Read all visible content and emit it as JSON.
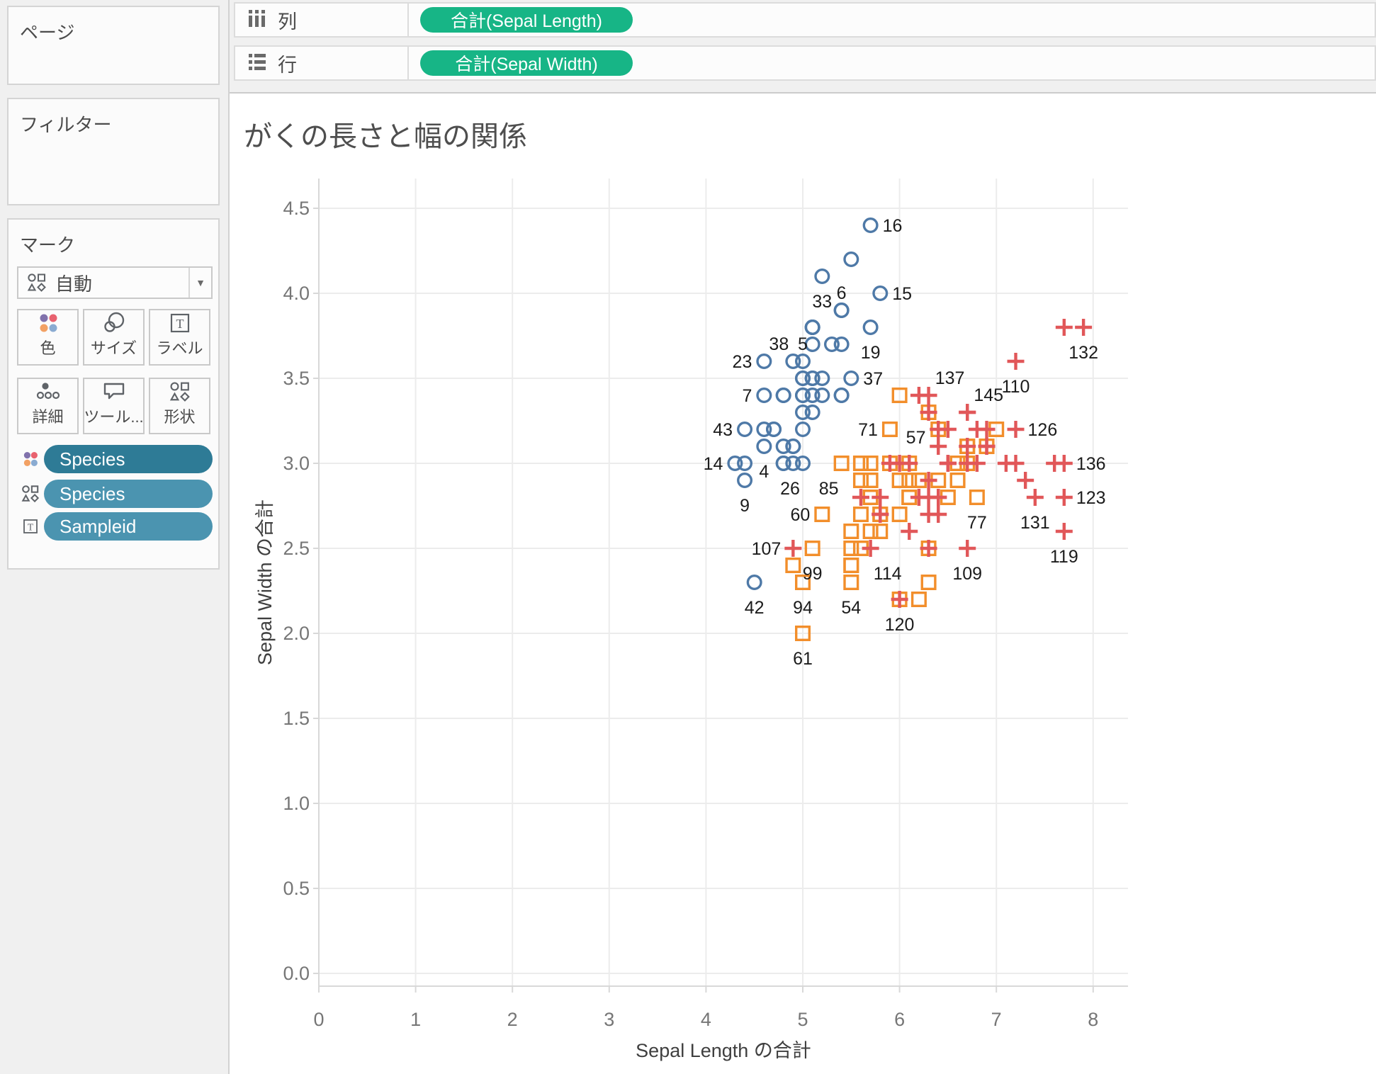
{
  "sidebar": {
    "pages_title": "ページ",
    "filters_title": "フィルター",
    "marks_title": "マーク",
    "mark_type_selector": "自動",
    "mark_buttons": [
      {
        "label": "色",
        "icon": "color-icon"
      },
      {
        "label": "サイズ",
        "icon": "size-icon"
      },
      {
        "label": "ラベル",
        "icon": "label-icon"
      },
      {
        "label": "詳細",
        "icon": "detail-icon"
      },
      {
        "label": "ツール...",
        "icon": "tooltip-icon"
      },
      {
        "label": "形状",
        "icon": "shape-icon"
      }
    ],
    "mark_pills": [
      {
        "label": "Species",
        "icon": "color-icon",
        "color": "#2e7b96"
      },
      {
        "label": "Species",
        "icon": "shape-icon",
        "color": "#4b94b0"
      },
      {
        "label": "Sampleid",
        "icon": "text-icon",
        "color": "#4b94b0"
      }
    ]
  },
  "shelf": {
    "columns": {
      "label": "列",
      "pill": "合計(Sepal Length)"
    },
    "rows": {
      "label": "行",
      "pill": "合計(Sepal Width)"
    },
    "pill_color": "#17b586"
  },
  "chart_data": {
    "type": "scatter",
    "title": "がくの長さと幅の関係",
    "xlabel": "Sepal Length の合計",
    "ylabel": "Sepal Width の合計",
    "xlim": [
      0,
      8.36
    ],
    "ylim": [
      0,
      4.67
    ],
    "x_ticks": [
      0,
      1,
      2,
      3,
      4,
      5,
      6,
      7,
      8
    ],
    "y_ticks": [
      0.0,
      0.5,
      1.0,
      1.5,
      2.0,
      2.5,
      3.0,
      3.5,
      4.0,
      4.5
    ],
    "grid": true,
    "grid_color": "#ececec",
    "axis_color": "#d8d8d8",
    "tick_label_color": "#767676",
    "axis_title_color": "#3f3f3f",
    "mark_label_color": "#1c1c1c",
    "series": [
      {
        "name": "circle-marks",
        "shape": "circle",
        "color": "#4E79A7",
        "points": [
          [
            1,
            5.1,
            3.5
          ],
          [
            2,
            4.9,
            3.0
          ],
          [
            3,
            4.7,
            3.2
          ],
          [
            4,
            4.6,
            3.1
          ],
          [
            5,
            5.0,
            3.6
          ],
          [
            6,
            5.4,
            3.9
          ],
          [
            7,
            4.6,
            3.4
          ],
          [
            8,
            5.0,
            3.4
          ],
          [
            9,
            4.4,
            2.9
          ],
          [
            10,
            4.9,
            3.1
          ],
          [
            11,
            5.4,
            3.7
          ],
          [
            12,
            4.8,
            3.4
          ],
          [
            13,
            4.8,
            3.0
          ],
          [
            14,
            4.3,
            3.0
          ],
          [
            15,
            5.8,
            4.0
          ],
          [
            16,
            5.7,
            4.4
          ],
          [
            17,
            5.4,
            3.9
          ],
          [
            18,
            5.1,
            3.5
          ],
          [
            19,
            5.7,
            3.8
          ],
          [
            20,
            5.1,
            3.8
          ],
          [
            21,
            5.4,
            3.4
          ],
          [
            22,
            5.1,
            3.7
          ],
          [
            23,
            4.6,
            3.6
          ],
          [
            24,
            5.1,
            3.3
          ],
          [
            25,
            4.8,
            3.4
          ],
          [
            26,
            5.0,
            3.0
          ],
          [
            27,
            5.0,
            3.4
          ],
          [
            28,
            5.2,
            3.5
          ],
          [
            29,
            5.2,
            3.4
          ],
          [
            30,
            4.7,
            3.2
          ],
          [
            31,
            4.8,
            3.1
          ],
          [
            32,
            5.4,
            3.4
          ],
          [
            33,
            5.2,
            4.1
          ],
          [
            34,
            5.5,
            4.2
          ],
          [
            35,
            4.9,
            3.1
          ],
          [
            36,
            5.0,
            3.2
          ],
          [
            37,
            5.5,
            3.5
          ],
          [
            38,
            4.9,
            3.6
          ],
          [
            39,
            4.4,
            3.0
          ],
          [
            40,
            5.1,
            3.4
          ],
          [
            41,
            5.0,
            3.5
          ],
          [
            42,
            4.5,
            2.3
          ],
          [
            43,
            4.4,
            3.2
          ],
          [
            44,
            5.0,
            3.5
          ],
          [
            45,
            5.1,
            3.8
          ],
          [
            46,
            4.8,
            3.0
          ],
          [
            47,
            5.1,
            3.8
          ],
          [
            48,
            4.6,
            3.2
          ],
          [
            49,
            5.3,
            3.7
          ],
          [
            50,
            5.0,
            3.3
          ]
        ]
      },
      {
        "name": "square-marks",
        "shape": "square",
        "color": "#F28E2B",
        "points": [
          [
            51,
            7.0,
            3.2
          ],
          [
            52,
            6.4,
            3.2
          ],
          [
            53,
            6.9,
            3.1
          ],
          [
            54,
            5.5,
            2.3
          ],
          [
            55,
            6.5,
            2.8
          ],
          [
            56,
            5.7,
            2.8
          ],
          [
            57,
            6.3,
            3.3
          ],
          [
            58,
            4.9,
            2.4
          ],
          [
            59,
            6.6,
            2.9
          ],
          [
            60,
            5.2,
            2.7
          ],
          [
            61,
            5.0,
            2.0
          ],
          [
            62,
            5.9,
            3.0
          ],
          [
            63,
            6.0,
            2.2
          ],
          [
            64,
            6.1,
            2.9
          ],
          [
            65,
            5.6,
            2.9
          ],
          [
            66,
            6.7,
            3.1
          ],
          [
            67,
            5.6,
            3.0
          ],
          [
            68,
            5.8,
            2.7
          ],
          [
            69,
            6.2,
            2.2
          ],
          [
            70,
            5.6,
            2.5
          ],
          [
            71,
            5.9,
            3.2
          ],
          [
            72,
            6.1,
            2.8
          ],
          [
            73,
            6.3,
            2.5
          ],
          [
            74,
            6.1,
            2.8
          ],
          [
            75,
            6.4,
            2.9
          ],
          [
            76,
            6.6,
            3.0
          ],
          [
            77,
            6.8,
            2.8
          ],
          [
            78,
            6.7,
            3.0
          ],
          [
            79,
            6.0,
            2.9
          ],
          [
            80,
            5.7,
            2.6
          ],
          [
            81,
            5.5,
            2.4
          ],
          [
            82,
            5.5,
            2.4
          ],
          [
            83,
            5.8,
            2.7
          ],
          [
            84,
            6.0,
            2.7
          ],
          [
            85,
            5.4,
            3.0
          ],
          [
            86,
            6.0,
            3.4
          ],
          [
            87,
            6.7,
            3.1
          ],
          [
            88,
            6.3,
            2.3
          ],
          [
            89,
            5.6,
            3.0
          ],
          [
            90,
            5.5,
            2.5
          ],
          [
            91,
            5.5,
            2.6
          ],
          [
            92,
            6.1,
            3.0
          ],
          [
            93,
            5.8,
            2.6
          ],
          [
            94,
            5.0,
            2.3
          ],
          [
            95,
            5.6,
            2.7
          ],
          [
            96,
            5.7,
            3.0
          ],
          [
            97,
            5.7,
            2.9
          ],
          [
            98,
            6.2,
            2.9
          ],
          [
            99,
            5.1,
            2.5
          ],
          [
            100,
            5.7,
            2.8
          ]
        ]
      },
      {
        "name": "plus-marks",
        "shape": "plus",
        "color": "#E15759",
        "points": [
          [
            101,
            6.3,
            3.3
          ],
          [
            102,
            5.8,
            2.7
          ],
          [
            103,
            7.1,
            3.0
          ],
          [
            104,
            6.3,
            2.9
          ],
          [
            105,
            6.5,
            3.0
          ],
          [
            106,
            7.6,
            3.0
          ],
          [
            107,
            4.9,
            2.5
          ],
          [
            108,
            7.3,
            2.9
          ],
          [
            109,
            6.7,
            2.5
          ],
          [
            110,
            7.2,
            3.6
          ],
          [
            111,
            6.5,
            3.2
          ],
          [
            112,
            6.4,
            2.7
          ],
          [
            113,
            6.8,
            3.0
          ],
          [
            114,
            5.7,
            2.5
          ],
          [
            115,
            5.8,
            2.8
          ],
          [
            116,
            6.4,
            3.2
          ],
          [
            117,
            6.5,
            3.0
          ],
          [
            118,
            7.7,
            3.8
          ],
          [
            119,
            7.7,
            2.6
          ],
          [
            120,
            6.0,
            2.2
          ],
          [
            121,
            6.9,
            3.2
          ],
          [
            122,
            5.6,
            2.8
          ],
          [
            123,
            7.7,
            2.8
          ],
          [
            124,
            6.3,
            2.7
          ],
          [
            125,
            6.7,
            3.3
          ],
          [
            126,
            7.2,
            3.2
          ],
          [
            127,
            6.2,
            2.8
          ],
          [
            128,
            6.1,
            3.0
          ],
          [
            129,
            6.4,
            2.8
          ],
          [
            130,
            7.2,
            3.0
          ],
          [
            131,
            7.4,
            2.8
          ],
          [
            132,
            7.9,
            3.8
          ],
          [
            133,
            6.4,
            2.8
          ],
          [
            134,
            6.3,
            2.8
          ],
          [
            135,
            6.1,
            2.6
          ],
          [
            136,
            7.7,
            3.0
          ],
          [
            137,
            6.3,
            3.4
          ],
          [
            138,
            6.4,
            3.1
          ],
          [
            139,
            6.0,
            3.0
          ],
          [
            140,
            6.9,
            3.1
          ],
          [
            141,
            6.7,
            3.1
          ],
          [
            142,
            6.9,
            3.1
          ],
          [
            143,
            5.8,
            2.7
          ],
          [
            144,
            6.8,
            3.2
          ],
          [
            145,
            6.7,
            3.3
          ],
          [
            146,
            6.7,
            3.0
          ],
          [
            147,
            6.3,
            2.5
          ],
          [
            148,
            6.5,
            3.0
          ],
          [
            149,
            6.2,
            3.4
          ],
          [
            150,
            5.9,
            3.0
          ]
        ]
      }
    ],
    "point_labels": [
      {
        "id": 16,
        "pos": "right"
      },
      {
        "id": 15,
        "pos": "right"
      },
      {
        "id": 37,
        "pos": "right"
      },
      {
        "id": 126,
        "pos": "right"
      },
      {
        "id": 136,
        "pos": "right"
      },
      {
        "id": 123,
        "pos": "right"
      },
      {
        "id": 23,
        "pos": "left"
      },
      {
        "id": 7,
        "pos": "left"
      },
      {
        "id": 43,
        "pos": "left"
      },
      {
        "id": 14,
        "pos": "left"
      },
      {
        "id": 60,
        "pos": "left"
      },
      {
        "id": 107,
        "pos": "left"
      },
      {
        "id": 71,
        "pos": "left"
      },
      {
        "id": 6,
        "pos": "above"
      },
      {
        "id": 5,
        "pos": "above"
      },
      {
        "id": 38,
        "pos": "above-left"
      },
      {
        "id": 137,
        "pos": "above-right"
      },
      {
        "id": 145,
        "pos": "above-right"
      },
      {
        "id": 33,
        "pos": "below"
      },
      {
        "id": 19,
        "pos": "below"
      },
      {
        "id": 4,
        "pos": "below"
      },
      {
        "id": 9,
        "pos": "below"
      },
      {
        "id": 42,
        "pos": "below"
      },
      {
        "id": 94,
        "pos": "below"
      },
      {
        "id": 54,
        "pos": "below"
      },
      {
        "id": 61,
        "pos": "below"
      },
      {
        "id": 99,
        "pos": "below"
      },
      {
        "id": 120,
        "pos": "below"
      },
      {
        "id": 109,
        "pos": "below"
      },
      {
        "id": 77,
        "pos": "below"
      },
      {
        "id": 110,
        "pos": "below"
      },
      {
        "id": 132,
        "pos": "below"
      },
      {
        "id": 131,
        "pos": "below"
      },
      {
        "id": 119,
        "pos": "below"
      },
      {
        "id": 26,
        "pos": "below-left"
      },
      {
        "id": 85,
        "pos": "below-left"
      },
      {
        "id": 57,
        "pos": "below-left"
      },
      {
        "id": 114,
        "pos": "below-right"
      }
    ]
  }
}
